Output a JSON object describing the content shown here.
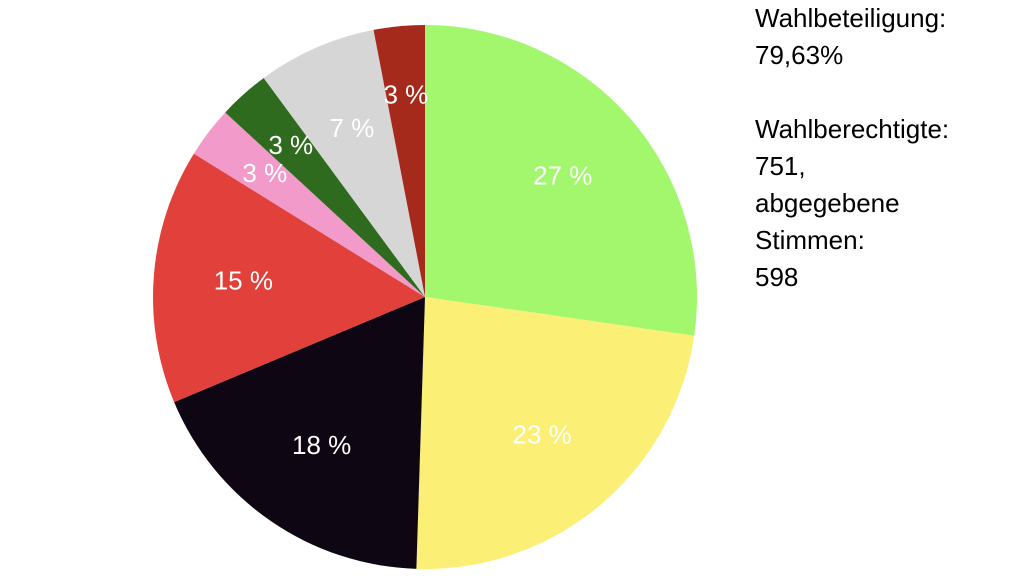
{
  "chart_data": {
    "type": "pie",
    "values": [
      27,
      23,
      18,
      15,
      3,
      3,
      7,
      3
    ],
    "value_labels": [
      "27 %",
      "23 %",
      "18 %",
      "15 %",
      "3 %",
      "3 %",
      "7 %",
      "3 %"
    ],
    "colors": [
      "#a3f76d",
      "#fbef75",
      "#0f0614",
      "#e2403a",
      "#f29bcb",
      "#2f6b1e",
      "#d6d6d6",
      "#a52a1c"
    ],
    "annotations": [
      [
        "Wahlbeteiligung:",
        "79,63%"
      ],
      [
        "Wahlberechtigte:",
        "751,",
        "abgegebene",
        "Stimmen:",
        "598"
      ]
    ]
  }
}
